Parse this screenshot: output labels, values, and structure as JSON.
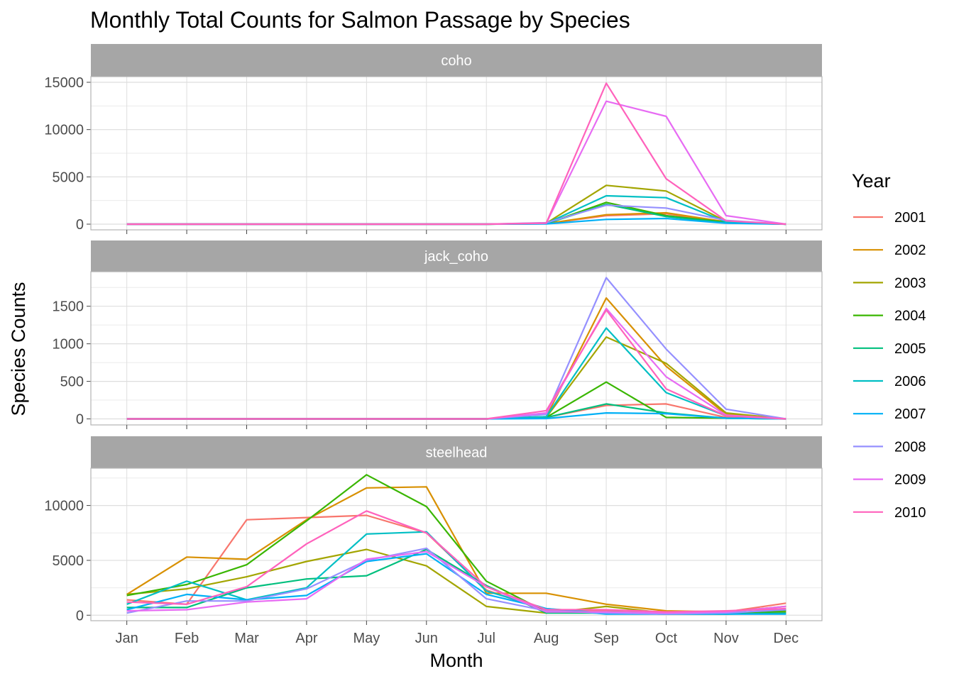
{
  "chart_data": {
    "type": "line",
    "title": "Monthly Total Counts for Salmon Passage by Species",
    "xlabel": "Month",
    "ylabel": "Species Counts",
    "categories": [
      "Jan",
      "Feb",
      "Mar",
      "Apr",
      "May",
      "Jun",
      "Jul",
      "Aug",
      "Sep",
      "Oct",
      "Nov",
      "Dec"
    ],
    "legend": {
      "title": "Year",
      "position": "right"
    },
    "grid": true,
    "series_colors": {
      "2001": "#F8766D",
      "2002": "#D89000",
      "2003": "#A3A500",
      "2004": "#39B600",
      "2005": "#00BF7D",
      "2006": "#00BFC4",
      "2007": "#00B0F6",
      "2008": "#9590FF",
      "2009": "#E76BF3",
      "2010": "#FF62BC"
    },
    "facets": [
      {
        "label": "coho",
        "ylim": [
          -600,
          15600
        ],
        "yticks": [
          0,
          5000,
          10000,
          15000
        ],
        "series": [
          {
            "name": "2001",
            "values": [
              0,
              0,
              0,
              0,
              0,
              0,
              0,
              50,
              900,
              1100,
              200,
              0
            ]
          },
          {
            "name": "2002",
            "values": [
              0,
              0,
              0,
              0,
              0,
              0,
              0,
              60,
              1000,
              1200,
              250,
              0
            ]
          },
          {
            "name": "2003",
            "values": [
              0,
              0,
              0,
              0,
              0,
              0,
              0,
              100,
              4100,
              3500,
              300,
              0
            ]
          },
          {
            "name": "2004",
            "values": [
              0,
              0,
              0,
              0,
              0,
              0,
              0,
              60,
              2300,
              900,
              200,
              0
            ]
          },
          {
            "name": "2005",
            "values": [
              0,
              0,
              0,
              0,
              0,
              0,
              0,
              50,
              2100,
              800,
              150,
              0
            ]
          },
          {
            "name": "2006",
            "values": [
              0,
              0,
              0,
              0,
              0,
              0,
              0,
              80,
              3000,
              2800,
              250,
              0
            ]
          },
          {
            "name": "2007",
            "values": [
              0,
              0,
              0,
              0,
              0,
              0,
              0,
              30,
              500,
              600,
              100,
              0
            ]
          },
          {
            "name": "2008",
            "values": [
              0,
              0,
              0,
              0,
              0,
              0,
              0,
              150,
              2000,
              1700,
              400,
              0
            ]
          },
          {
            "name": "2009",
            "values": [
              0,
              0,
              0,
              0,
              0,
              0,
              0,
              100,
              13000,
              11400,
              900,
              0
            ]
          },
          {
            "name": "2010",
            "values": [
              0,
              0,
              0,
              0,
              0,
              0,
              0,
              120,
              14900,
              4800,
              350,
              0
            ]
          }
        ]
      },
      {
        "label": "jack_coho",
        "ylim": [
          -80,
          1960
        ],
        "yticks": [
          0,
          500,
          1000,
          1500
        ],
        "series": [
          {
            "name": "2001",
            "values": [
              0,
              0,
              0,
              0,
              0,
              0,
              0,
              20,
              180,
              200,
              20,
              0
            ]
          },
          {
            "name": "2002",
            "values": [
              0,
              0,
              0,
              0,
              0,
              0,
              0,
              30,
              1610,
              700,
              60,
              0
            ]
          },
          {
            "name": "2003",
            "values": [
              0,
              0,
              0,
              0,
              0,
              0,
              0,
              20,
              1090,
              740,
              80,
              0
            ]
          },
          {
            "name": "2004",
            "values": [
              0,
              0,
              0,
              0,
              0,
              0,
              0,
              20,
              490,
              20,
              10,
              0
            ]
          },
          {
            "name": "2005",
            "values": [
              0,
              0,
              0,
              0,
              0,
              0,
              0,
              20,
              200,
              80,
              10,
              0
            ]
          },
          {
            "name": "2006",
            "values": [
              0,
              0,
              0,
              0,
              0,
              0,
              0,
              30,
              1210,
              350,
              40,
              0
            ]
          },
          {
            "name": "2007",
            "values": [
              0,
              0,
              0,
              0,
              0,
              0,
              0,
              5,
              80,
              70,
              10,
              0
            ]
          },
          {
            "name": "2008",
            "values": [
              0,
              0,
              0,
              0,
              0,
              0,
              0,
              60,
              1880,
              930,
              130,
              0
            ]
          },
          {
            "name": "2009",
            "values": [
              0,
              0,
              0,
              0,
              0,
              0,
              0,
              80,
              1470,
              560,
              50,
              0
            ]
          },
          {
            "name": "2010",
            "values": [
              0,
              0,
              0,
              0,
              0,
              0,
              0,
              110,
              1450,
              400,
              40,
              0
            ]
          }
        ]
      },
      {
        "label": "steelhead",
        "ylim": [
          -500,
          13400
        ],
        "yticks": [
          0,
          5000,
          10000
        ],
        "series": [
          {
            "name": "2001",
            "values": [
              1400,
              1000,
              8700,
              8900,
              9100,
              7500,
              2300,
              400,
              400,
              300,
              300,
              1100
            ]
          },
          {
            "name": "2002",
            "values": [
              1900,
              5300,
              5100,
              8700,
              11600,
              11700,
              2000,
              2000,
              1000,
              400,
              300,
              800
            ]
          },
          {
            "name": "2003",
            "values": [
              1900,
              2400,
              3500,
              4900,
              6000,
              4500,
              800,
              200,
              800,
              200,
              200,
              300
            ]
          },
          {
            "name": "2004",
            "values": [
              1800,
              2800,
              4600,
              8600,
              12800,
              9900,
              3100,
              300,
              300,
              200,
              100,
              400
            ]
          },
          {
            "name": "2005",
            "values": [
              700,
              700,
              2500,
              3300,
              3600,
              6000,
              2700,
              200,
              200,
              100,
              100,
              200
            ]
          },
          {
            "name": "2006",
            "values": [
              1000,
              3100,
              1400,
              2500,
              7400,
              7600,
              2200,
              600,
              200,
              100,
              200,
              500
            ]
          },
          {
            "name": "2007",
            "values": [
              500,
              1900,
              1400,
              1800,
              4900,
              5600,
              1900,
              600,
              100,
              100,
              100,
              100
            ]
          },
          {
            "name": "2008",
            "values": [
              200,
              1300,
              1300,
              2400,
              5000,
              6100,
              1500,
              400,
              200,
              100,
              200,
              500
            ]
          },
          {
            "name": "2009",
            "values": [
              400,
              500,
              1200,
              1500,
              5100,
              5800,
              2600,
              300,
              300,
              200,
              300,
              800
            ]
          },
          {
            "name": "2010",
            "values": [
              1200,
              1000,
              2600,
              6500,
              9500,
              7500,
              2600,
              500,
              500,
              300,
              400,
              600
            ]
          }
        ]
      }
    ]
  }
}
